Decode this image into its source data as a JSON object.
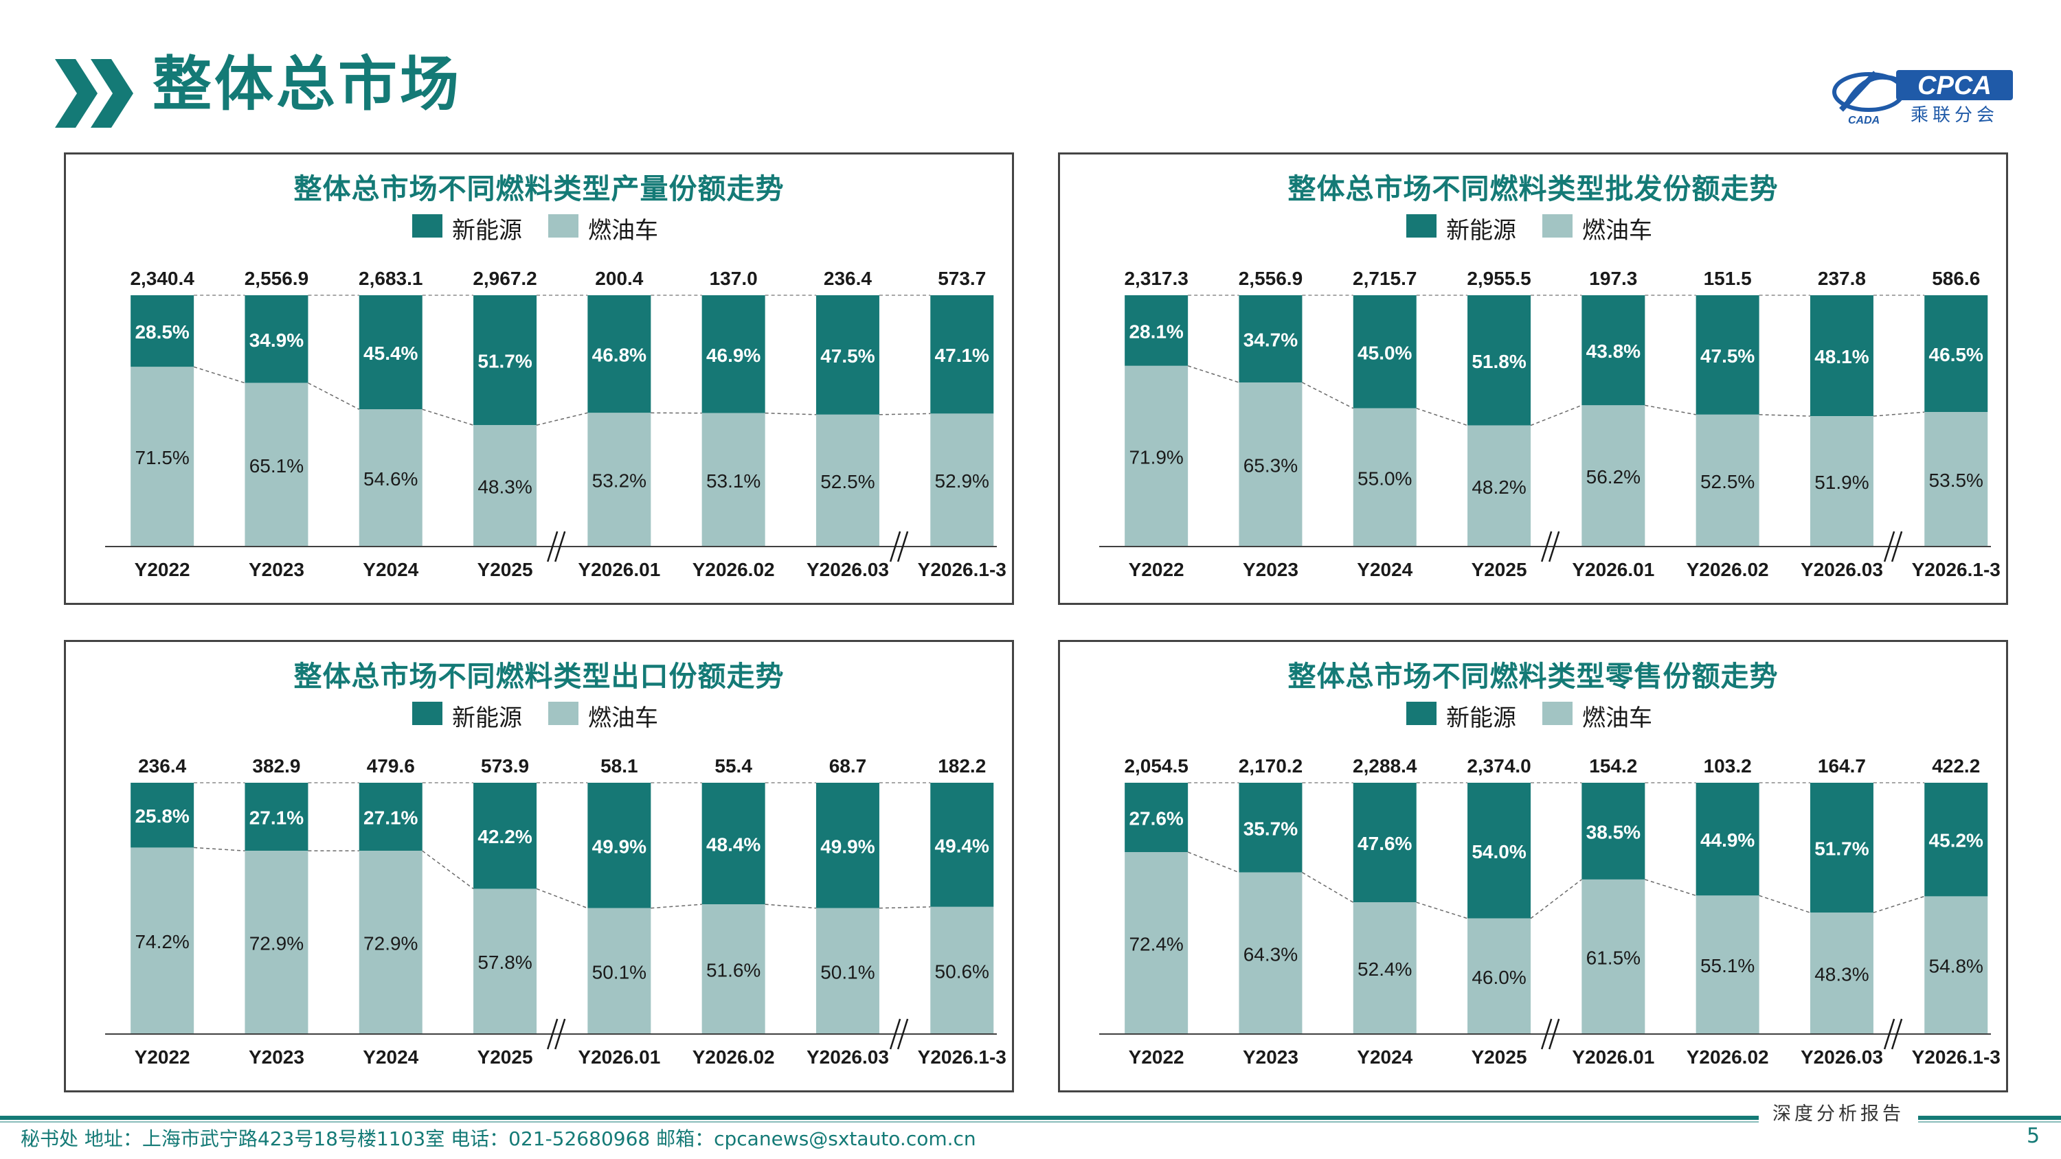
{
  "header": {
    "title": "整体总市场"
  },
  "logo": {
    "text": "CPCA",
    "subtext": "乘联分会",
    "emblem_text": "CADA"
  },
  "colors": {
    "nev": "#167875",
    "ice": "#a2c4c3",
    "accent": "#147a76"
  },
  "legend": {
    "nev_label": "新能源",
    "ice_label": "燃油车"
  },
  "chart_data": [
    {
      "type": "bar",
      "stacked": true,
      "normalized": true,
      "title": "整体总市场不同燃料类型产量份额走势",
      "categories": [
        "Y2022",
        "Y2023",
        "Y2024",
        "Y2025",
        "Y2026.01",
        "Y2026.02",
        "Y2026.03",
        "Y2026.1-3"
      ],
      "totals": [
        "2,340.4",
        "2,556.9",
        "2,683.1",
        "2,967.2",
        "200.4",
        "137.0",
        "236.4",
        "573.7"
      ],
      "series": [
        {
          "name": "新能源",
          "values": [
            28.5,
            34.9,
            45.4,
            51.7,
            46.8,
            46.9,
            47.5,
            47.1
          ]
        },
        {
          "name": "燃油车",
          "values": [
            71.5,
            65.1,
            54.6,
            48.3,
            53.2,
            53.1,
            52.5,
            52.9
          ]
        }
      ]
    },
    {
      "type": "bar",
      "stacked": true,
      "normalized": true,
      "title": "整体总市场不同燃料类型批发份额走势",
      "categories": [
        "Y2022",
        "Y2023",
        "Y2024",
        "Y2025",
        "Y2026.01",
        "Y2026.02",
        "Y2026.03",
        "Y2026.1-3"
      ],
      "totals": [
        "2,317.3",
        "2,556.9",
        "2,715.7",
        "2,955.5",
        "197.3",
        "151.5",
        "237.8",
        "586.6"
      ],
      "series": [
        {
          "name": "新能源",
          "values": [
            28.1,
            34.7,
            45.0,
            51.8,
            43.8,
            47.5,
            48.1,
            46.5
          ]
        },
        {
          "name": "燃油车",
          "values": [
            71.9,
            65.3,
            55.0,
            48.2,
            56.2,
            52.5,
            51.9,
            53.5
          ]
        }
      ]
    },
    {
      "type": "bar",
      "stacked": true,
      "normalized": true,
      "title": "整体总市场不同燃料类型出口份额走势",
      "categories": [
        "Y2022",
        "Y2023",
        "Y2024",
        "Y2025",
        "Y2026.01",
        "Y2026.02",
        "Y2026.03",
        "Y2026.1-3"
      ],
      "totals": [
        "236.4",
        "382.9",
        "479.6",
        "573.9",
        "58.1",
        "55.4",
        "68.7",
        "182.2"
      ],
      "series": [
        {
          "name": "新能源",
          "values": [
            25.8,
            27.1,
            27.1,
            42.2,
            49.9,
            48.4,
            49.9,
            49.4
          ]
        },
        {
          "name": "燃油车",
          "values": [
            74.2,
            72.9,
            72.9,
            57.8,
            50.1,
            51.6,
            50.1,
            50.6
          ]
        }
      ]
    },
    {
      "type": "bar",
      "stacked": true,
      "normalized": true,
      "title": "整体总市场不同燃料类型零售份额走势",
      "categories": [
        "Y2022",
        "Y2023",
        "Y2024",
        "Y2025",
        "Y2026.01",
        "Y2026.02",
        "Y2026.03",
        "Y2026.1-3"
      ],
      "totals": [
        "2,054.5",
        "2,170.2",
        "2,288.4",
        "2,374.0",
        "154.2",
        "103.2",
        "164.7",
        "422.2"
      ],
      "series": [
        {
          "name": "新能源",
          "values": [
            27.6,
            35.7,
            47.6,
            54.0,
            38.5,
            44.9,
            51.7,
            45.2
          ]
        },
        {
          "name": "燃油车",
          "values": [
            72.4,
            64.3,
            52.4,
            46.0,
            61.5,
            55.1,
            48.3,
            54.8
          ]
        }
      ]
    }
  ],
  "footer": {
    "tag": "深度分析报告",
    "contact": "秘书处   地址：上海市武宁路423号18号楼1103室   电话：021-52680968   邮箱：cpcanews@sxtauto.com.cn",
    "page_number": "5"
  }
}
